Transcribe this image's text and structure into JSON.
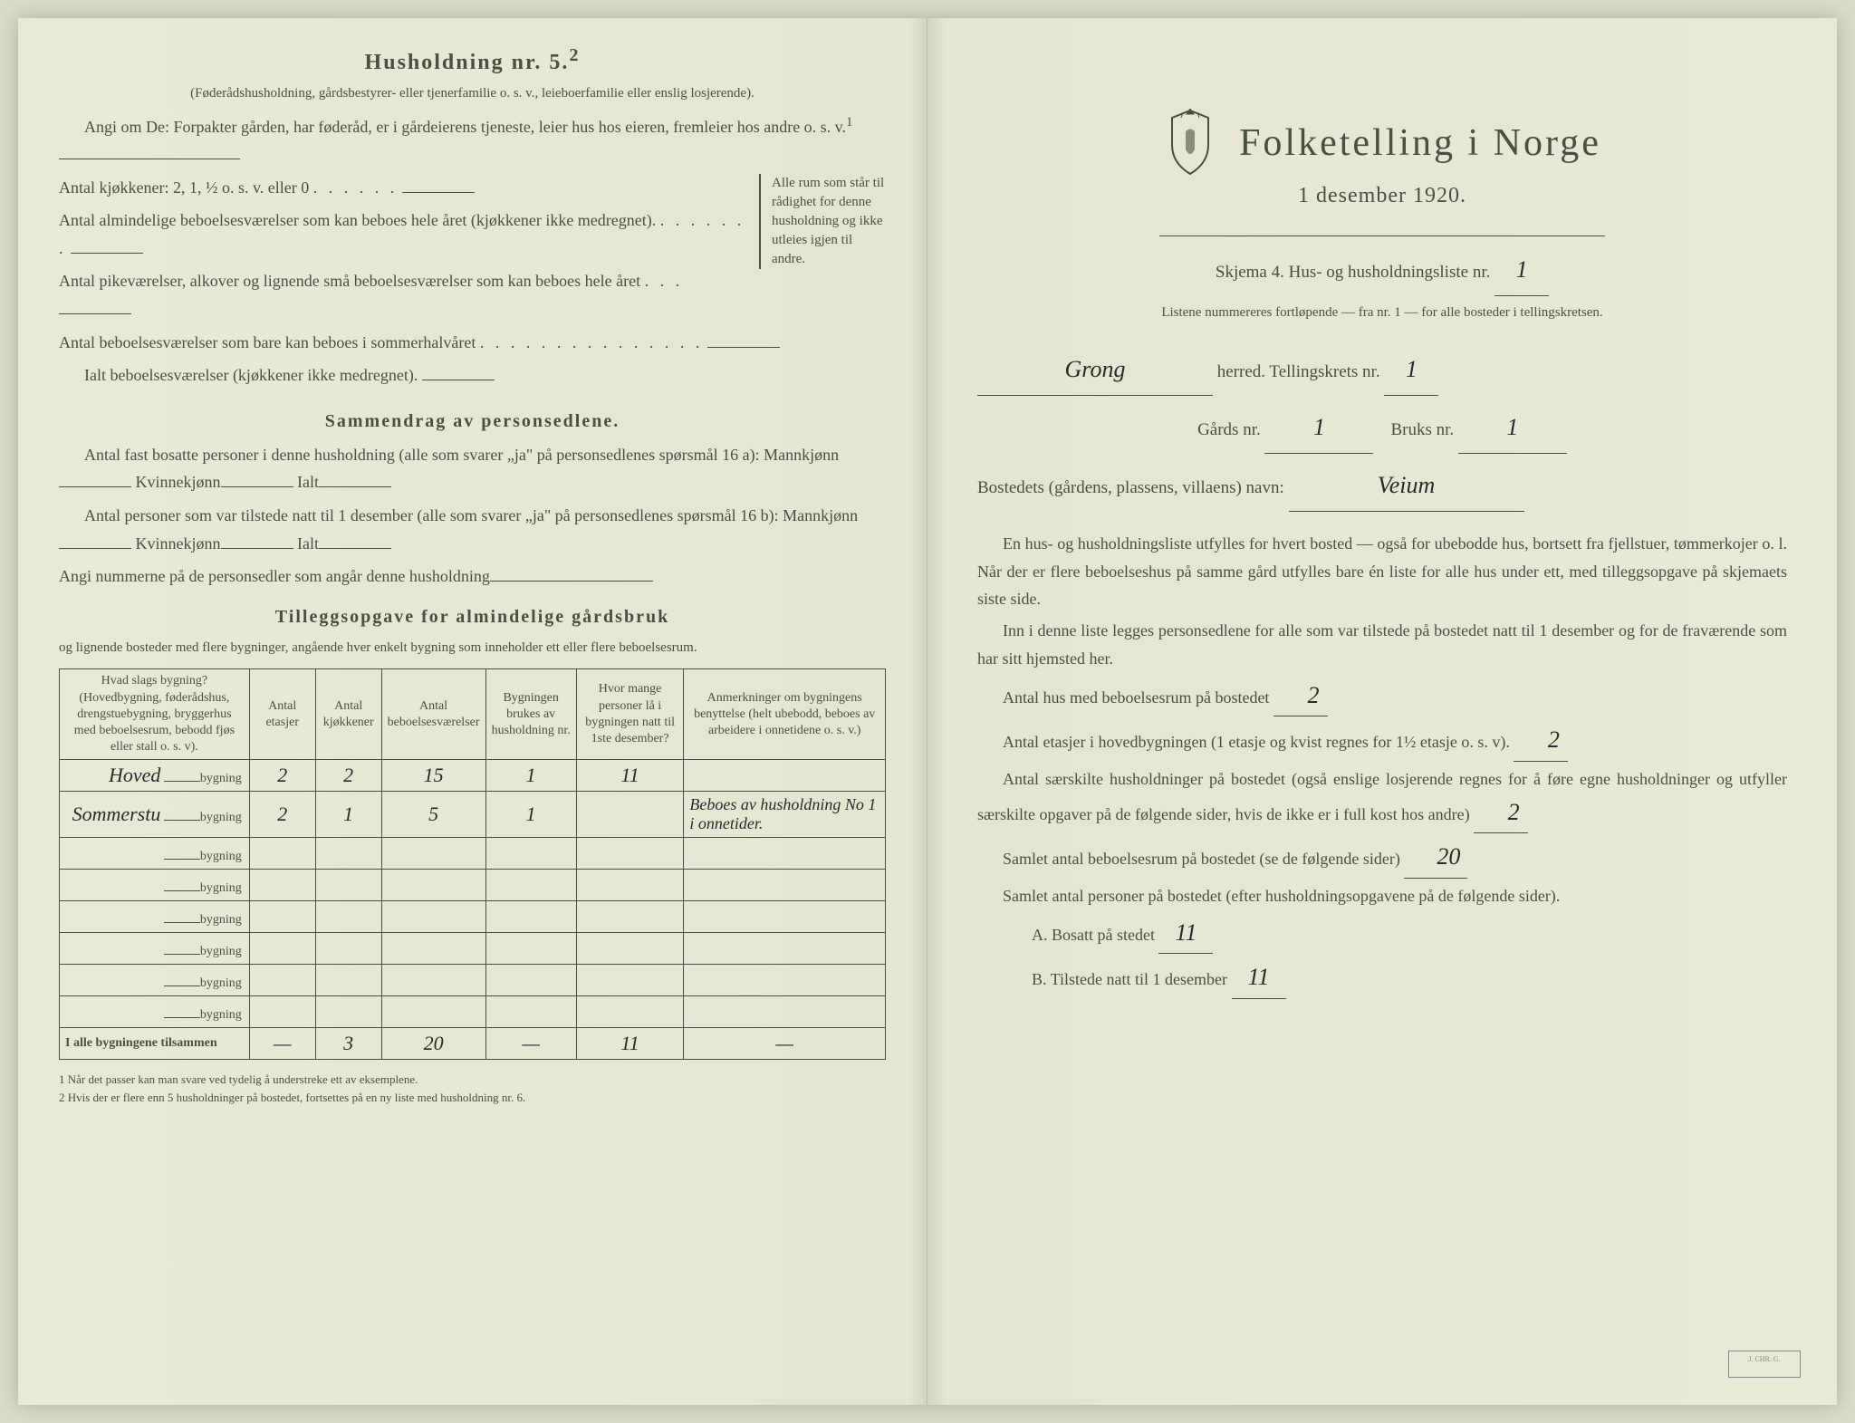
{
  "left": {
    "household_heading": "Husholdning nr. 5.",
    "household_sup": "2",
    "household_sub": "(Føderådshusholdning, gårdsbestyrer- eller tjenerfamilie o. s. v., leieboerfamilie eller enslig losjerende).",
    "angi_line": "Angi om De: Forpakter gården, har føderåd, er i gårdeierens tjeneste, leier hus hos eieren, fremleier hos andre o. s. v.",
    "sup1": "1",
    "kitchen_line": "Antal kjøkkener: 2, 1, ½ o. s. v. eller 0",
    "room_lines": [
      "Antal almindelige beboelsesværelser som kan beboes hele året (kjøkkener ikke medregnet).",
      "Antal pikeværelser, alkover og lignende små beboelsesværelser som kan beboes hele året",
      "Antal beboelsesværelser som bare kan beboes i sommerhalvåret",
      "Ialt beboelsesværelser (kjøkkener ikke medregnet)."
    ],
    "brace_text": "Alle rum som står til rådighet for denne husholdning og ikke utleies igjen til andre.",
    "summary_heading": "Sammendrag av personsedlene.",
    "summary_p1a": "Antal fast bosatte personer i denne husholdning (alle som svarer „ja\" på personsedlenes spørsmål 16 a): Mannkjønn",
    "summary_p1b": "Kvinnekjønn",
    "summary_p1c": "Ialt",
    "summary_p2a": "Antal personer som var tilstede natt til 1 desember (alle som svarer „ja\" på personsedlenes spørsmål 16 b): Mannkjønn",
    "summary_p3": "Angi nummerne på de personsedler som angår denne husholdning",
    "tillegg_heading": "Tilleggsopgave for almindelige gårdsbruk",
    "tillegg_sub": "og lignende bosteder med flere bygninger, angående hver enkelt bygning som inneholder ett eller flere beboelsesrum.",
    "table": {
      "headers": [
        "Hvad slags bygning?\n(Hovedbygning, føderådshus, drengstuebygning, bryggerhus med beboelsesrum, bebodd fjøs eller stall o. s. v).",
        "Antal etasjer",
        "Antal kjøkkener",
        "Antal beboelsesværelser",
        "Bygningen brukes av husholdning nr.",
        "Hvor mange personer lå i bygningen natt til 1ste desember?",
        "Anmerkninger om bygningens benyttelse (helt ubebodd, beboes av arbeidere i onnetidene o. s. v.)"
      ],
      "rows": [
        {
          "label_hw": "Hoved",
          "label_print": "bygning",
          "cells": [
            "2",
            "2",
            "15",
            "1",
            "11",
            ""
          ]
        },
        {
          "label_hw": "Sommerstu",
          "label_print": "bygning",
          "cells": [
            "2",
            "1",
            "5",
            "1",
            "",
            "Beboes av husholdning No 1 i onnetider."
          ]
        },
        {
          "label_hw": "",
          "label_print": "bygning",
          "cells": [
            "",
            "",
            "",
            "",
            "",
            ""
          ]
        },
        {
          "label_hw": "",
          "label_print": "bygning",
          "cells": [
            "",
            "",
            "",
            "",
            "",
            ""
          ]
        },
        {
          "label_hw": "",
          "label_print": "bygning",
          "cells": [
            "",
            "",
            "",
            "",
            "",
            ""
          ]
        },
        {
          "label_hw": "",
          "label_print": "bygning",
          "cells": [
            "",
            "",
            "",
            "",
            "",
            ""
          ]
        },
        {
          "label_hw": "",
          "label_print": "bygning",
          "cells": [
            "",
            "",
            "",
            "",
            "",
            ""
          ]
        },
        {
          "label_hw": "",
          "label_print": "bygning",
          "cells": [
            "",
            "",
            "",
            "",
            "",
            ""
          ]
        }
      ],
      "total_label": "I alle bygningene tilsammen",
      "total_cells": [
        "—",
        "3",
        "20",
        "—",
        "11",
        "—"
      ]
    },
    "footnote1": "1  Når det passer kan man svare ved tydelig å understreke ett av eksemplene.",
    "footnote2": "2  Hvis der er flere enn 5 husholdninger på bostedet, fortsettes på en ny liste med husholdning nr. 6."
  },
  "right": {
    "main_title": "Folketelling i Norge",
    "subtitle": "1 desember 1920.",
    "skjema_line": "Skjema 4.   Hus- og husholdningsliste nr.",
    "skjema_value": "1",
    "listene_line": "Listene nummereres fortløpende — fra nr. 1 — for alle bosteder i tellingskretsen.",
    "herred_hw": "Grong",
    "herred_label": "herred.   Tellingskrets nr.",
    "tellingskrets_value": "1",
    "gards_label": "Gårds nr.",
    "gards_value": "1",
    "bruks_label": "Bruks nr.",
    "bruks_value": "1",
    "bosted_label": "Bostedets (gårdens, plassens, villaens) navn:",
    "bosted_value": "Veium",
    "para1": "En hus- og husholdningsliste utfylles for hvert bosted — også for ubebodde hus, bortsett fra fjellstuer, tømmerkojer o. l.  Når der er flere beboelseshus på samme gård utfylles bare én liste for alle hus under ett, med tilleggsopgave på skjemaets siste side.",
    "para2": "Inn i denne liste legges personsedlene for alle som var tilstede på bostedet natt til 1 desember og for de fraværende som har sitt hjemsted her.",
    "q1": "Antal hus med beboelsesrum på bostedet",
    "q1_value": "2",
    "q2a": "Antal etasjer i hovedbygningen (1 etasje og kvist regnes for 1½ etasje o. s. v).",
    "q2_value": "2",
    "q3": "Antal særskilte husholdninger på bostedet (også enslige losjerende regnes for å føre egne husholdninger og utfyller særskilte opgaver på de følgende sider, hvis de ikke er i full kost hos andre)",
    "q3_value": "2",
    "q4": "Samlet antal beboelsesrum på bostedet (se de følgende sider)",
    "q4_value": "20",
    "q5": "Samlet antal personer på bostedet (efter husholdningsopgavene på de følgende sider).",
    "qA": "A.  Bosatt på stedet",
    "qA_value": "11",
    "qB": "B.  Tilstede natt til 1 desember",
    "qB_value": "11"
  },
  "colors": {
    "paper": "#e8ead8",
    "ink": "#4a5040",
    "handwriting": "#2a2a2a"
  }
}
